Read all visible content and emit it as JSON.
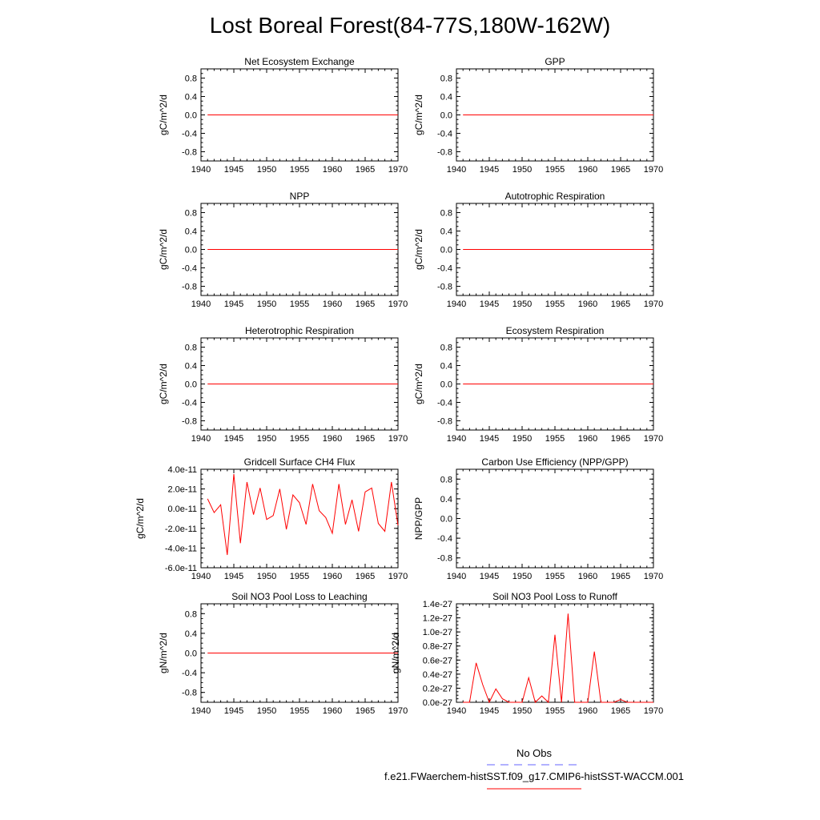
{
  "title": "Lost Boreal Forest(84-77S,180W-162W)",
  "legend": {
    "entries": [
      {
        "label": "No Obs",
        "color": "#6666ff",
        "style": "dashed"
      },
      {
        "label": "f.e21.FWaerchem-histSST.f09_g17.CMIP6-histSST-WACCM.001",
        "color": "#ff0000",
        "style": "solid"
      }
    ]
  },
  "chart_data": [
    {
      "type": "line",
      "title": "Net Ecosystem Exchange",
      "ylabel": "gC/m^2/d",
      "xlim": [
        1940,
        1970
      ],
      "ylim": [
        -1,
        1
      ],
      "xticks": [
        1940,
        1945,
        1950,
        1955,
        1960,
        1965,
        1970
      ],
      "yticks": [
        -0.8,
        -0.4,
        0.0,
        0.4,
        0.8
      ],
      "ytick_labels": [
        "-0.8",
        "-0.4",
        "0.0",
        "0.4",
        "0.8"
      ],
      "series": [
        {
          "color": "#ff0000",
          "x": [
            1941,
            1970
          ],
          "y": [
            0,
            0
          ]
        }
      ]
    },
    {
      "type": "line",
      "title": "GPP",
      "ylabel": "gC/m^2/d",
      "xlim": [
        1940,
        1970
      ],
      "ylim": [
        -1,
        1
      ],
      "xticks": [
        1940,
        1945,
        1950,
        1955,
        1960,
        1965,
        1970
      ],
      "yticks": [
        -0.8,
        -0.4,
        0.0,
        0.4,
        0.8
      ],
      "ytick_labels": [
        "-0.8",
        "-0.4",
        "0.0",
        "0.4",
        "0.8"
      ],
      "series": [
        {
          "color": "#ff0000",
          "x": [
            1941,
            1970
          ],
          "y": [
            0,
            0
          ]
        }
      ]
    },
    {
      "type": "line",
      "title": "NPP",
      "ylabel": "gC/m^2/d",
      "xlim": [
        1940,
        1970
      ],
      "ylim": [
        -1,
        1
      ],
      "xticks": [
        1940,
        1945,
        1950,
        1955,
        1960,
        1965,
        1970
      ],
      "yticks": [
        -0.8,
        -0.4,
        0.0,
        0.4,
        0.8
      ],
      "ytick_labels": [
        "-0.8",
        "-0.4",
        "0.0",
        "0.4",
        "0.8"
      ],
      "series": [
        {
          "color": "#ff0000",
          "x": [
            1941,
            1970
          ],
          "y": [
            0,
            0
          ]
        }
      ]
    },
    {
      "type": "line",
      "title": "Autotrophic Respiration",
      "ylabel": "gC/m^2/d",
      "xlim": [
        1940,
        1970
      ],
      "ylim": [
        -1,
        1
      ],
      "xticks": [
        1940,
        1945,
        1950,
        1955,
        1960,
        1965,
        1970
      ],
      "yticks": [
        -0.8,
        -0.4,
        0.0,
        0.4,
        0.8
      ],
      "ytick_labels": [
        "-0.8",
        "-0.4",
        "0.0",
        "0.4",
        "0.8"
      ],
      "series": [
        {
          "color": "#ff0000",
          "x": [
            1941,
            1970
          ],
          "y": [
            0,
            0
          ]
        }
      ]
    },
    {
      "type": "line",
      "title": "Heterotrophic Respiration",
      "ylabel": "gC/m^2/d",
      "xlim": [
        1940,
        1970
      ],
      "ylim": [
        -1,
        1
      ],
      "xticks": [
        1940,
        1945,
        1950,
        1955,
        1960,
        1965,
        1970
      ],
      "yticks": [
        -0.8,
        -0.4,
        0.0,
        0.4,
        0.8
      ],
      "ytick_labels": [
        "-0.8",
        "-0.4",
        "0.0",
        "0.4",
        "0.8"
      ],
      "series": [
        {
          "color": "#ff0000",
          "x": [
            1941,
            1970
          ],
          "y": [
            0,
            0
          ]
        }
      ]
    },
    {
      "type": "line",
      "title": "Ecosystem Respiration",
      "ylabel": "gC/m^2/d",
      "xlim": [
        1940,
        1970
      ],
      "ylim": [
        -1,
        1
      ],
      "xticks": [
        1940,
        1945,
        1950,
        1955,
        1960,
        1965,
        1970
      ],
      "yticks": [
        -0.8,
        -0.4,
        0.0,
        0.4,
        0.8
      ],
      "ytick_labels": [
        "-0.8",
        "-0.4",
        "0.0",
        "0.4",
        "0.8"
      ],
      "series": [
        {
          "color": "#ff0000",
          "x": [
            1941,
            1970
          ],
          "y": [
            0,
            0
          ]
        }
      ]
    },
    {
      "type": "line",
      "title": "Gridcell Surface CH4 Flux",
      "ylabel": "gC/m^2/d",
      "xlim": [
        1940,
        1970
      ],
      "ylim": [
        -6e-11,
        4e-11
      ],
      "xticks": [
        1940,
        1945,
        1950,
        1955,
        1960,
        1965,
        1970
      ],
      "yticks": [
        -6e-11,
        -4e-11,
        -2e-11,
        0,
        2e-11,
        4e-11
      ],
      "ytick_labels": [
        "-6.0e-11",
        "-4.0e-11",
        "-2.0e-11",
        "0.0e-11",
        "2.0e-11",
        "4.0e-11"
      ],
      "series": [
        {
          "color": "#ff0000",
          "x": [
            1941,
            1942,
            1943,
            1944,
            1945,
            1946,
            1947,
            1948,
            1949,
            1950,
            1951,
            1952,
            1953,
            1954,
            1955,
            1956,
            1957,
            1958,
            1959,
            1960,
            1961,
            1962,
            1963,
            1964,
            1965,
            1966,
            1967,
            1968,
            1969,
            1970
          ],
          "y": [
            1e-11,
            -4e-12,
            4e-12,
            -4.7e-11,
            3.5e-11,
            -3.5e-11,
            2.7e-11,
            -6e-12,
            2.1e-11,
            -1.1e-11,
            -7e-12,
            2e-11,
            -2.1e-11,
            1.4e-11,
            6e-12,
            -1.6e-11,
            2.5e-11,
            -2e-12,
            -9e-12,
            -2.5e-11,
            2.5e-11,
            -1.6e-11,
            9e-12,
            -2.3e-11,
            1.7e-11,
            2.1e-11,
            -1.5e-11,
            -2.3e-11,
            2.7e-11,
            -1.7e-11
          ]
        }
      ]
    },
    {
      "type": "line",
      "title": "Carbon Use Efficiency (NPP/GPP)",
      "ylabel": "NPP/GPP",
      "xlim": [
        1940,
        1970
      ],
      "ylim": [
        -1,
        1
      ],
      "xticks": [
        1940,
        1945,
        1950,
        1955,
        1960,
        1965,
        1970
      ],
      "yticks": [
        -0.8,
        -0.4,
        0.0,
        0.4,
        0.8
      ],
      "ytick_labels": [
        "-0.8",
        "-0.4",
        "0.0",
        "0.4",
        "0.8"
      ],
      "series": []
    },
    {
      "type": "line",
      "title": "Soil NO3 Pool Loss to Leaching",
      "ylabel": "gN/m^2/d",
      "xlim": [
        1940,
        1970
      ],
      "ylim": [
        -1,
        1
      ],
      "xticks": [
        1940,
        1945,
        1950,
        1955,
        1960,
        1965,
        1970
      ],
      "yticks": [
        -0.8,
        -0.4,
        0.0,
        0.4,
        0.8
      ],
      "ytick_labels": [
        "-0.8",
        "-0.4",
        "0.0",
        "0.4",
        "0.8"
      ],
      "series": [
        {
          "color": "#ff0000",
          "x": [
            1941,
            1970
          ],
          "y": [
            0,
            0
          ]
        }
      ]
    },
    {
      "type": "line",
      "title": "Soil NO3 Pool Loss to Runoff",
      "ylabel": "gN/m^2/d",
      "xlim": [
        1940,
        1970
      ],
      "ylim": [
        0,
        1.4e-27
      ],
      "xticks": [
        1940,
        1945,
        1950,
        1955,
        1960,
        1965,
        1970
      ],
      "yticks": [
        0,
        2e-28,
        4e-28,
        6e-28,
        8e-28,
        1e-27,
        1.2e-27,
        1.4e-27
      ],
      "ytick_labels": [
        "0.0e-27",
        "0.2e-27",
        "0.4e-27",
        "0.6e-27",
        "0.8e-27",
        "1.0e-27",
        "1.2e-27",
        "1.4e-27"
      ],
      "series": [
        {
          "color": "#ff0000",
          "x": [
            1941,
            1942,
            1943,
            1944,
            1945,
            1946,
            1947,
            1948,
            1949,
            1950,
            1951,
            1952,
            1953,
            1954,
            1955,
            1956,
            1957,
            1958,
            1959,
            1960,
            1961,
            1962,
            1963,
            1964,
            1965,
            1966,
            1967,
            1968,
            1969,
            1970
          ],
          "y": [
            0,
            0,
            5.6e-28,
            2.5e-28,
            0,
            1.9e-28,
            5e-29,
            0,
            0,
            0,
            3.5e-28,
            0,
            9e-29,
            0,
            9.6e-28,
            0,
            1.26e-27,
            0,
            0,
            0,
            7.2e-28,
            0,
            0,
            0,
            4e-29,
            0,
            0,
            0,
            0,
            0
          ]
        }
      ]
    }
  ]
}
